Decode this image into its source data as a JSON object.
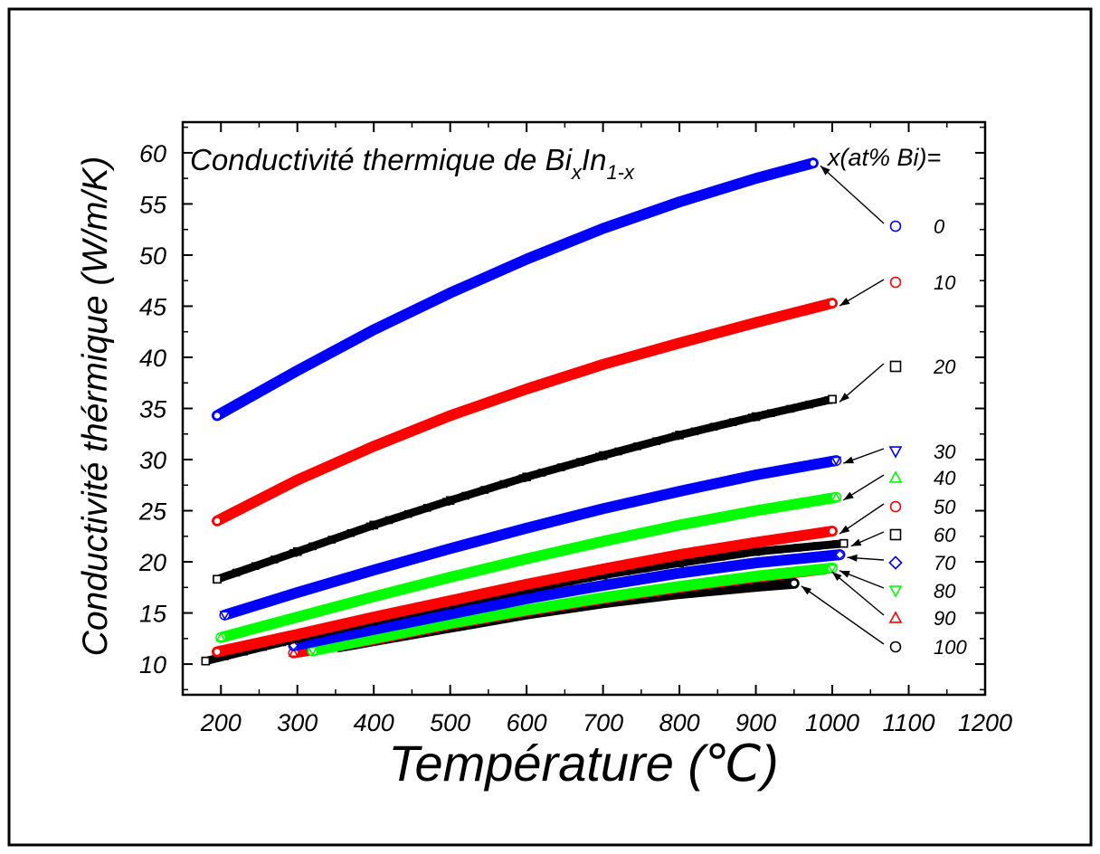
{
  "chart_data": {
    "type": "scatter",
    "title": {
      "prefix": "Conductivité thermique de Bi",
      "sub_x": "x",
      "mid": "In",
      "sub_1x": "1-x"
    },
    "xlabel": "Température (℃)",
    "ylabel": "Conductivité thérmique (W/m/K)",
    "xlim": [
      150,
      1200
    ],
    "ylim": [
      7,
      63
    ],
    "x_ticks": [
      "200",
      "300",
      "400",
      "500",
      "600",
      "700",
      "800",
      "900",
      "1000",
      "1100",
      "1200"
    ],
    "y_ticks": [
      "10",
      "15",
      "20",
      "25",
      "30",
      "35",
      "40",
      "45",
      "50",
      "55",
      "60"
    ],
    "legend_heading": "x(at% Bi)=",
    "legend_position": "right",
    "grid": false,
    "series": [
      {
        "name": "0",
        "marker": "circle",
        "color": "#0000ff",
        "x": [
          195,
          300,
          400,
          500,
          600,
          700,
          800,
          900,
          975
        ],
        "y": [
          34.3,
          38.7,
          42.7,
          46.3,
          49.6,
          52.6,
          55.2,
          57.5,
          59.0
        ]
      },
      {
        "name": "10",
        "marker": "circle",
        "color": "#ff0000",
        "x": [
          195,
          300,
          400,
          500,
          600,
          700,
          800,
          900,
          1000
        ],
        "y": [
          24.0,
          28.0,
          31.3,
          34.3,
          36.9,
          39.3,
          41.4,
          43.4,
          45.3
        ]
      },
      {
        "name": "20",
        "marker": "square",
        "color": "#000000",
        "x": [
          195,
          300,
          400,
          500,
          600,
          700,
          800,
          900,
          1000
        ],
        "y": [
          18.3,
          21.0,
          23.6,
          26.0,
          28.3,
          30.4,
          32.4,
          34.2,
          35.9
        ]
      },
      {
        "name": "30",
        "marker": "triangle-down",
        "color": "#0000ff",
        "x": [
          205,
          300,
          400,
          500,
          600,
          700,
          800,
          900,
          1005
        ],
        "y": [
          14.8,
          17.0,
          19.2,
          21.3,
          23.3,
          25.2,
          26.9,
          28.5,
          29.9
        ]
      },
      {
        "name": "40",
        "marker": "triangle-up",
        "color": "#00ff00",
        "x": [
          200,
          300,
          400,
          500,
          600,
          700,
          800,
          900,
          1005
        ],
        "y": [
          12.6,
          14.6,
          16.6,
          18.5,
          20.3,
          22.0,
          23.6,
          25.0,
          26.3
        ]
      },
      {
        "name": "50",
        "marker": "circle",
        "color": "#ff0000",
        "x": [
          195,
          300,
          400,
          500,
          600,
          700,
          800,
          900,
          1000
        ],
        "y": [
          11.2,
          12.9,
          14.6,
          16.2,
          17.8,
          19.3,
          20.7,
          21.9,
          23.0
        ]
      },
      {
        "name": "60",
        "marker": "square",
        "color": "#000000",
        "x": [
          180,
          300,
          400,
          500,
          600,
          700,
          800,
          900,
          1015
        ],
        "y": [
          10.3,
          12.5,
          14.2,
          15.8,
          17.3,
          18.7,
          19.9,
          21.0,
          21.8
        ]
      },
      {
        "name": "70",
        "marker": "diamond",
        "color": "#0000ff",
        "x": [
          295,
          400,
          500,
          600,
          700,
          800,
          900,
          1010
        ],
        "y": [
          11.8,
          13.4,
          14.9,
          16.4,
          17.7,
          18.9,
          19.9,
          20.7
        ]
      },
      {
        "name": "80",
        "marker": "triangle-down",
        "color": "#00ff00",
        "x": [
          320,
          400,
          500,
          600,
          700,
          800,
          900,
          1000
        ],
        "y": [
          11.3,
          12.5,
          14.0,
          15.3,
          16.5,
          17.6,
          18.6,
          19.4
        ]
      },
      {
        "name": "90",
        "marker": "triangle-up",
        "color": "#ff0000",
        "x": [
          295,
          400,
          500,
          600,
          700,
          800,
          900,
          990
        ],
        "y": [
          11.1,
          12.4,
          13.9,
          15.2,
          16.4,
          17.5,
          18.5,
          19.3
        ]
      },
      {
        "name": "100",
        "marker": "circle",
        "color": "#000000",
        "x": [
          355,
          400,
          500,
          600,
          700,
          800,
          900,
          950
        ],
        "y": [
          11.7,
          12.3,
          13.6,
          14.9,
          16.0,
          16.9,
          17.6,
          17.9
        ]
      }
    ]
  }
}
